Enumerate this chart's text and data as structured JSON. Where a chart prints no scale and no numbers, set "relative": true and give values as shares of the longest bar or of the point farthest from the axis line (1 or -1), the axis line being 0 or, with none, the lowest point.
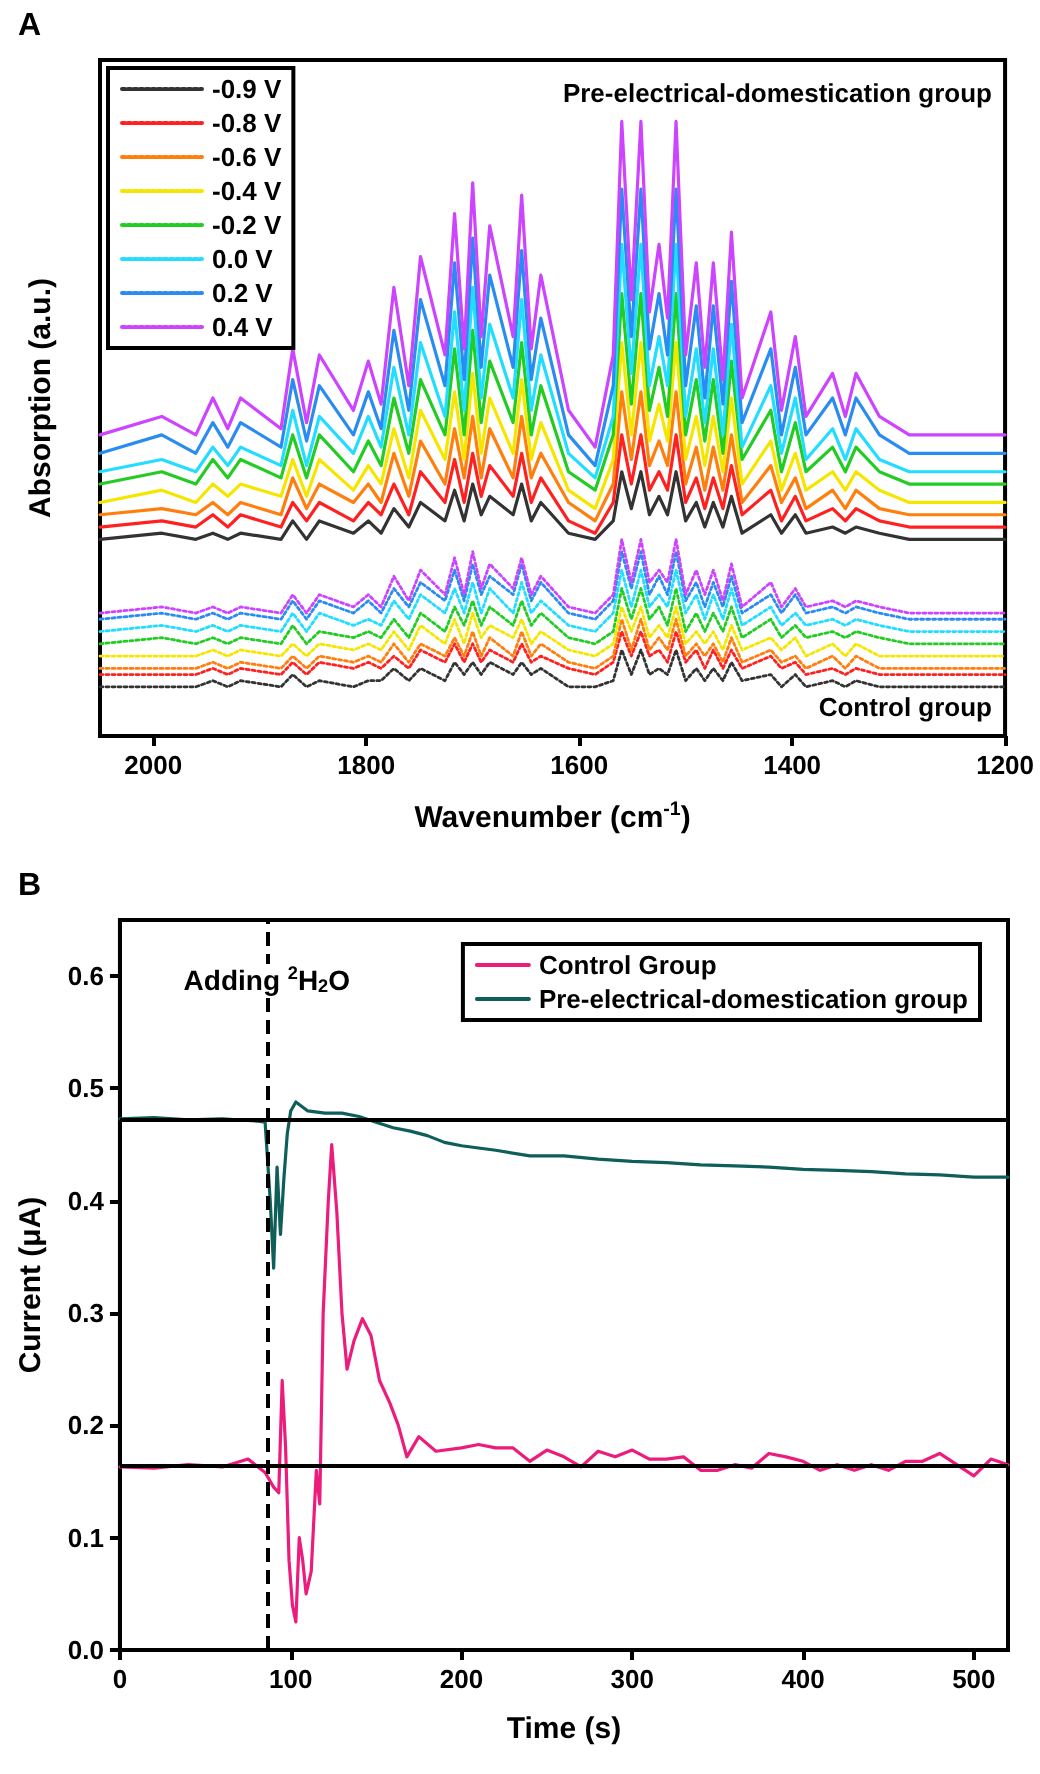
{
  "chart_data": [
    {
      "type": "line",
      "title": "A",
      "xlabel": "Wavenumber (cm$^{-1}$)",
      "ylabel": "Absorption (a.u.)",
      "relative": true,
      "xlim": [
        2050,
        1200
      ],
      "xticks": [
        2000,
        1800,
        1600,
        1400,
        1200
      ],
      "tick_labels": "x",
      "grid": false,
      "legend": "top left",
      "marker": "none",
      "annotations": [
        "Pre-electrical-domestication group",
        "Control group"
      ],
      "x": [
        2050,
        1992,
        1960,
        1944,
        1930,
        1918,
        1880,
        1869,
        1856,
        1844,
        1812,
        1798,
        1786,
        1774,
        1760,
        1749,
        1726,
        1717,
        1708,
        1700,
        1692,
        1684,
        1662,
        1654,
        1645,
        1636,
        1610,
        1585,
        1568,
        1560,
        1551,
        1542,
        1534,
        1525,
        1517,
        1509,
        1500,
        1490,
        1482,
        1474,
        1465,
        1457,
        1447,
        1420,
        1410,
        1397,
        1387,
        1362,
        1350,
        1340,
        1318,
        1290,
        1200
      ],
      "series": [
        {
          "name": "-0.9 V",
          "color": "#333333",
          "line_style": "dotted",
          "values": [
            0.08,
            0.08,
            0.08,
            0.09,
            0.08,
            0.09,
            0.08,
            0.1,
            0.08,
            0.09,
            0.08,
            0.09,
            0.09,
            0.11,
            0.09,
            0.11,
            0.09,
            0.12,
            0.1,
            0.12,
            0.1,
            0.12,
            0.1,
            0.12,
            0.1,
            0.11,
            0.08,
            0.08,
            0.09,
            0.14,
            0.1,
            0.14,
            0.1,
            0.11,
            0.1,
            0.14,
            0.09,
            0.11,
            0.09,
            0.11,
            0.09,
            0.12,
            0.09,
            0.1,
            0.08,
            0.1,
            0.08,
            0.09,
            0.08,
            0.09,
            0.08,
            0.08,
            0.08
          ]
        },
        {
          "name": "-0.8 V",
          "color": "#ff2020",
          "line_style": "dotted",
          "values": [
            0.1,
            0.1,
            0.1,
            0.11,
            0.1,
            0.11,
            0.1,
            0.12,
            0.1,
            0.12,
            0.11,
            0.12,
            0.11,
            0.13,
            0.11,
            0.14,
            0.12,
            0.15,
            0.12,
            0.15,
            0.12,
            0.14,
            0.12,
            0.15,
            0.12,
            0.13,
            0.11,
            0.1,
            0.12,
            0.17,
            0.13,
            0.17,
            0.13,
            0.14,
            0.12,
            0.17,
            0.12,
            0.14,
            0.11,
            0.14,
            0.11,
            0.14,
            0.11,
            0.13,
            0.11,
            0.12,
            0.1,
            0.11,
            0.1,
            0.11,
            0.1,
            0.1,
            0.1
          ]
        },
        {
          "name": "-0.6 V",
          "color": "#ff7f0e",
          "line_style": "dotted",
          "values": [
            0.11,
            0.11,
            0.11,
            0.12,
            0.11,
            0.12,
            0.11,
            0.13,
            0.11,
            0.13,
            0.12,
            0.13,
            0.12,
            0.15,
            0.12,
            0.15,
            0.13,
            0.16,
            0.13,
            0.17,
            0.13,
            0.16,
            0.13,
            0.17,
            0.13,
            0.15,
            0.12,
            0.11,
            0.13,
            0.19,
            0.14,
            0.19,
            0.14,
            0.16,
            0.14,
            0.19,
            0.13,
            0.15,
            0.13,
            0.15,
            0.12,
            0.16,
            0.12,
            0.14,
            0.12,
            0.13,
            0.11,
            0.13,
            0.11,
            0.13,
            0.11,
            0.11,
            0.11
          ]
        },
        {
          "name": "-0.4 V",
          "color": "#f5e600",
          "line_style": "dotted",
          "values": [
            0.13,
            0.13,
            0.13,
            0.14,
            0.13,
            0.14,
            0.13,
            0.15,
            0.13,
            0.15,
            0.14,
            0.15,
            0.14,
            0.17,
            0.14,
            0.18,
            0.15,
            0.19,
            0.15,
            0.2,
            0.16,
            0.18,
            0.16,
            0.19,
            0.15,
            0.17,
            0.14,
            0.13,
            0.15,
            0.21,
            0.17,
            0.21,
            0.16,
            0.18,
            0.16,
            0.21,
            0.15,
            0.17,
            0.15,
            0.17,
            0.14,
            0.18,
            0.14,
            0.16,
            0.14,
            0.16,
            0.13,
            0.15,
            0.13,
            0.15,
            0.13,
            0.13,
            0.13
          ]
        },
        {
          "name": "-0.2 V",
          "color": "#22cc22",
          "line_style": "dotted",
          "values": [
            0.15,
            0.16,
            0.15,
            0.16,
            0.15,
            0.16,
            0.15,
            0.18,
            0.15,
            0.17,
            0.16,
            0.17,
            0.16,
            0.19,
            0.16,
            0.2,
            0.17,
            0.21,
            0.18,
            0.22,
            0.18,
            0.21,
            0.18,
            0.22,
            0.18,
            0.2,
            0.16,
            0.15,
            0.17,
            0.24,
            0.19,
            0.24,
            0.19,
            0.21,
            0.18,
            0.24,
            0.17,
            0.2,
            0.17,
            0.2,
            0.17,
            0.21,
            0.16,
            0.19,
            0.16,
            0.18,
            0.16,
            0.17,
            0.16,
            0.17,
            0.16,
            0.15,
            0.15
          ]
        },
        {
          "name": "0.0 V",
          "color": "#22ddff",
          "line_style": "dotted",
          "values": [
            0.17,
            0.18,
            0.17,
            0.18,
            0.17,
            0.18,
            0.17,
            0.2,
            0.17,
            0.2,
            0.18,
            0.19,
            0.18,
            0.22,
            0.19,
            0.23,
            0.2,
            0.24,
            0.2,
            0.25,
            0.2,
            0.24,
            0.2,
            0.25,
            0.2,
            0.22,
            0.18,
            0.17,
            0.2,
            0.27,
            0.21,
            0.27,
            0.21,
            0.23,
            0.21,
            0.27,
            0.2,
            0.23,
            0.19,
            0.23,
            0.19,
            0.24,
            0.18,
            0.21,
            0.18,
            0.2,
            0.18,
            0.19,
            0.18,
            0.19,
            0.18,
            0.17,
            0.17
          ]
        },
        {
          "name": "0.2 V",
          "color": "#2a8cf0",
          "line_style": "dotted",
          "values": [
            0.19,
            0.2,
            0.19,
            0.2,
            0.19,
            0.2,
            0.19,
            0.22,
            0.19,
            0.22,
            0.2,
            0.22,
            0.2,
            0.24,
            0.21,
            0.25,
            0.22,
            0.27,
            0.22,
            0.28,
            0.23,
            0.26,
            0.23,
            0.28,
            0.22,
            0.25,
            0.2,
            0.19,
            0.22,
            0.3,
            0.24,
            0.3,
            0.23,
            0.26,
            0.23,
            0.3,
            0.22,
            0.25,
            0.21,
            0.25,
            0.21,
            0.26,
            0.2,
            0.23,
            0.2,
            0.23,
            0.2,
            0.21,
            0.2,
            0.21,
            0.2,
            0.19,
            0.19
          ]
        },
        {
          "name": "0.4 V",
          "color": "#cc44ff",
          "line_style": "dotted",
          "values": [
            0.2,
            0.21,
            0.2,
            0.21,
            0.2,
            0.21,
            0.2,
            0.23,
            0.2,
            0.23,
            0.21,
            0.23,
            0.21,
            0.26,
            0.22,
            0.27,
            0.23,
            0.29,
            0.23,
            0.3,
            0.24,
            0.28,
            0.24,
            0.29,
            0.23,
            0.26,
            0.21,
            0.2,
            0.23,
            0.32,
            0.25,
            0.32,
            0.25,
            0.27,
            0.25,
            0.32,
            0.23,
            0.27,
            0.23,
            0.27,
            0.22,
            0.28,
            0.21,
            0.25,
            0.21,
            0.24,
            0.21,
            0.22,
            0.21,
            0.22,
            0.21,
            0.2,
            0.2
          ]
        },
        {
          "color": "#333333",
          "line_style": "solid",
          "values": [
            0.32,
            0.33,
            0.32,
            0.33,
            0.32,
            0.33,
            0.32,
            0.35,
            0.32,
            0.35,
            0.33,
            0.35,
            0.33,
            0.37,
            0.34,
            0.38,
            0.35,
            0.4,
            0.35,
            0.41,
            0.36,
            0.39,
            0.36,
            0.41,
            0.35,
            0.38,
            0.33,
            0.32,
            0.35,
            0.43,
            0.37,
            0.43,
            0.36,
            0.39,
            0.36,
            0.43,
            0.35,
            0.38,
            0.34,
            0.38,
            0.34,
            0.39,
            0.33,
            0.36,
            0.33,
            0.36,
            0.33,
            0.34,
            0.33,
            0.34,
            0.33,
            0.32,
            0.32
          ]
        },
        {
          "color": "#ff2020",
          "line_style": "solid",
          "values": [
            0.34,
            0.35,
            0.34,
            0.36,
            0.34,
            0.36,
            0.34,
            0.38,
            0.35,
            0.38,
            0.35,
            0.38,
            0.36,
            0.41,
            0.36,
            0.43,
            0.38,
            0.45,
            0.38,
            0.46,
            0.39,
            0.44,
            0.39,
            0.46,
            0.38,
            0.42,
            0.35,
            0.33,
            0.38,
            0.49,
            0.41,
            0.49,
            0.4,
            0.43,
            0.4,
            0.49,
            0.38,
            0.42,
            0.37,
            0.42,
            0.37,
            0.44,
            0.36,
            0.4,
            0.35,
            0.39,
            0.35,
            0.37,
            0.35,
            0.37,
            0.35,
            0.34,
            0.34
          ]
        },
        {
          "color": "#ff7f0e",
          "line_style": "solid",
          "values": [
            0.36,
            0.37,
            0.36,
            0.38,
            0.36,
            0.38,
            0.36,
            0.42,
            0.37,
            0.41,
            0.38,
            0.41,
            0.38,
            0.46,
            0.39,
            0.48,
            0.41,
            0.5,
            0.42,
            0.52,
            0.42,
            0.5,
            0.42,
            0.52,
            0.42,
            0.46,
            0.38,
            0.35,
            0.41,
            0.56,
            0.45,
            0.56,
            0.44,
            0.48,
            0.44,
            0.56,
            0.41,
            0.47,
            0.4,
            0.47,
            0.4,
            0.49,
            0.38,
            0.44,
            0.38,
            0.42,
            0.37,
            0.4,
            0.37,
            0.4,
            0.37,
            0.36,
            0.36
          ]
        },
        {
          "color": "#f5e600",
          "line_style": "solid",
          "values": [
            0.38,
            0.4,
            0.38,
            0.41,
            0.39,
            0.41,
            0.39,
            0.45,
            0.39,
            0.45,
            0.4,
            0.44,
            0.41,
            0.5,
            0.42,
            0.53,
            0.45,
            0.56,
            0.45,
            0.59,
            0.46,
            0.55,
            0.46,
            0.58,
            0.45,
            0.51,
            0.4,
            0.37,
            0.45,
            0.64,
            0.49,
            0.64,
            0.48,
            0.54,
            0.48,
            0.64,
            0.45,
            0.52,
            0.44,
            0.52,
            0.43,
            0.55,
            0.41,
            0.48,
            0.4,
            0.46,
            0.4,
            0.43,
            0.4,
            0.43,
            0.4,
            0.38,
            0.38
          ]
        },
        {
          "color": "#22cc22",
          "line_style": "solid",
          "values": [
            0.41,
            0.43,
            0.41,
            0.45,
            0.42,
            0.45,
            0.42,
            0.49,
            0.42,
            0.49,
            0.43,
            0.48,
            0.44,
            0.55,
            0.46,
            0.58,
            0.49,
            0.63,
            0.49,
            0.66,
            0.51,
            0.61,
            0.51,
            0.64,
            0.49,
            0.57,
            0.43,
            0.4,
            0.49,
            0.72,
            0.54,
            0.72,
            0.53,
            0.6,
            0.52,
            0.72,
            0.49,
            0.58,
            0.48,
            0.58,
            0.46,
            0.61,
            0.45,
            0.53,
            0.43,
            0.51,
            0.43,
            0.47,
            0.43,
            0.47,
            0.43,
            0.41,
            0.41
          ]
        },
        {
          "color": "#22ddff",
          "line_style": "solid",
          "values": [
            0.43,
            0.45,
            0.43,
            0.47,
            0.44,
            0.47,
            0.44,
            0.53,
            0.44,
            0.52,
            0.46,
            0.52,
            0.47,
            0.6,
            0.49,
            0.64,
            0.52,
            0.69,
            0.53,
            0.73,
            0.55,
            0.67,
            0.55,
            0.71,
            0.53,
            0.62,
            0.46,
            0.42,
            0.52,
            0.8,
            0.59,
            0.8,
            0.57,
            0.65,
            0.57,
            0.8,
            0.52,
            0.63,
            0.51,
            0.63,
            0.49,
            0.67,
            0.47,
            0.57,
            0.46,
            0.55,
            0.45,
            0.5,
            0.45,
            0.5,
            0.45,
            0.43,
            0.43
          ]
        },
        {
          "color": "#2a8cf0",
          "line_style": "solid",
          "values": [
            0.46,
            0.49,
            0.46,
            0.51,
            0.47,
            0.51,
            0.47,
            0.58,
            0.48,
            0.57,
            0.49,
            0.56,
            0.5,
            0.66,
            0.53,
            0.71,
            0.57,
            0.77,
            0.58,
            0.81,
            0.6,
            0.75,
            0.6,
            0.79,
            0.58,
            0.68,
            0.49,
            0.44,
            0.57,
            0.89,
            0.65,
            0.89,
            0.63,
            0.72,
            0.62,
            0.89,
            0.57,
            0.7,
            0.55,
            0.7,
            0.54,
            0.74,
            0.51,
            0.63,
            0.49,
            0.6,
            0.49,
            0.55,
            0.49,
            0.55,
            0.49,
            0.46,
            0.46
          ]
        },
        {
          "color": "#cc44ff",
          "line_style": "solid",
          "values": [
            0.49,
            0.52,
            0.49,
            0.55,
            0.5,
            0.55,
            0.5,
            0.63,
            0.51,
            0.62,
            0.53,
            0.61,
            0.54,
            0.73,
            0.57,
            0.78,
            0.62,
            0.85,
            0.63,
            0.9,
            0.65,
            0.83,
            0.65,
            0.88,
            0.63,
            0.75,
            0.53,
            0.47,
            0.62,
            1.0,
            0.71,
            1.0,
            0.69,
            0.8,
            0.68,
            1.0,
            0.62,
            0.77,
            0.6,
            0.77,
            0.58,
            0.82,
            0.55,
            0.69,
            0.53,
            0.65,
            0.52,
            0.59,
            0.52,
            0.59,
            0.52,
            0.49,
            0.49
          ]
        }
      ]
    },
    {
      "type": "line",
      "title": "B",
      "xlabel": "Time (s)",
      "ylabel": "Current (μA)",
      "xlim": [
        0,
        520
      ],
      "xticks": [
        0,
        100,
        200,
        300,
        400,
        500
      ],
      "ylim": [
        0,
        0.65
      ],
      "yticks": [
        {
          "value": 0,
          "label": "0.0"
        },
        0.1,
        0.2,
        0.3,
        0.4,
        0.5,
        0.6
      ],
      "grid": false,
      "legend": "top right",
      "marker": "none",
      "ref_lines": [
        {
          "axis": "x",
          "value": 86,
          "label": "Adding $^{2}$H$_{2}$O",
          "color": "#000000",
          "line_style": "dashed"
        },
        {
          "axis": "y",
          "value": 0.473,
          "color": "#000000",
          "line_style": "solid"
        },
        {
          "axis": "y",
          "value": 0.165,
          "color": "#000000",
          "line_style": "solid"
        }
      ],
      "series": [
        {
          "name": "Control Group",
          "color": "#ec1c7c",
          "x": [
            0,
            20,
            40,
            60,
            75,
            85,
            90,
            93,
            95,
            97,
            99,
            101,
            103,
            105,
            107,
            109,
            112,
            115,
            117,
            119,
            122,
            124,
            127,
            130,
            133,
            137,
            142,
            147,
            152,
            158,
            163,
            168,
            175,
            185,
            200,
            210,
            220,
            230,
            240,
            250,
            260,
            270,
            280,
            290,
            300,
            310,
            320,
            330,
            340,
            350,
            360,
            370,
            380,
            390,
            400,
            410,
            420,
            430,
            440,
            450,
            460,
            470,
            480,
            490,
            500,
            510,
            520
          ],
          "values": [
            0.163,
            0.162,
            0.165,
            0.163,
            0.17,
            0.158,
            0.145,
            0.14,
            0.24,
            0.18,
            0.08,
            0.04,
            0.025,
            0.1,
            0.08,
            0.05,
            0.07,
            0.16,
            0.13,
            0.3,
            0.4,
            0.45,
            0.39,
            0.3,
            0.25,
            0.275,
            0.295,
            0.28,
            0.24,
            0.22,
            0.2,
            0.172,
            0.19,
            0.177,
            0.18,
            0.183,
            0.18,
            0.18,
            0.168,
            0.178,
            0.172,
            0.163,
            0.177,
            0.172,
            0.178,
            0.17,
            0.17,
            0.172,
            0.16,
            0.16,
            0.165,
            0.162,
            0.175,
            0.172,
            0.168,
            0.16,
            0.165,
            0.16,
            0.165,
            0.16,
            0.168,
            0.168,
            0.175,
            0.165,
            0.155,
            0.17,
            0.165
          ]
        },
        {
          "name": "Pre-electrical-domestication group",
          "color": "#0e5e5a",
          "x": [
            0,
            20,
            40,
            60,
            80,
            85,
            88,
            90,
            92,
            94,
            96,
            98,
            100,
            103,
            110,
            120,
            130,
            140,
            150,
            160,
            170,
            180,
            190,
            200,
            220,
            240,
            260,
            280,
            300,
            320,
            340,
            360,
            380,
            400,
            420,
            440,
            460,
            480,
            500,
            520
          ],
          "values": [
            0.473,
            0.474,
            0.472,
            0.473,
            0.471,
            0.47,
            0.4,
            0.34,
            0.43,
            0.37,
            0.42,
            0.46,
            0.48,
            0.488,
            0.48,
            0.478,
            0.478,
            0.475,
            0.47,
            0.465,
            0.462,
            0.458,
            0.452,
            0.449,
            0.445,
            0.44,
            0.44,
            0.437,
            0.435,
            0.434,
            0.432,
            0.431,
            0.43,
            0.428,
            0.427,
            0.426,
            0.424,
            0.423,
            0.421,
            0.421
          ]
        }
      ]
    }
  ]
}
